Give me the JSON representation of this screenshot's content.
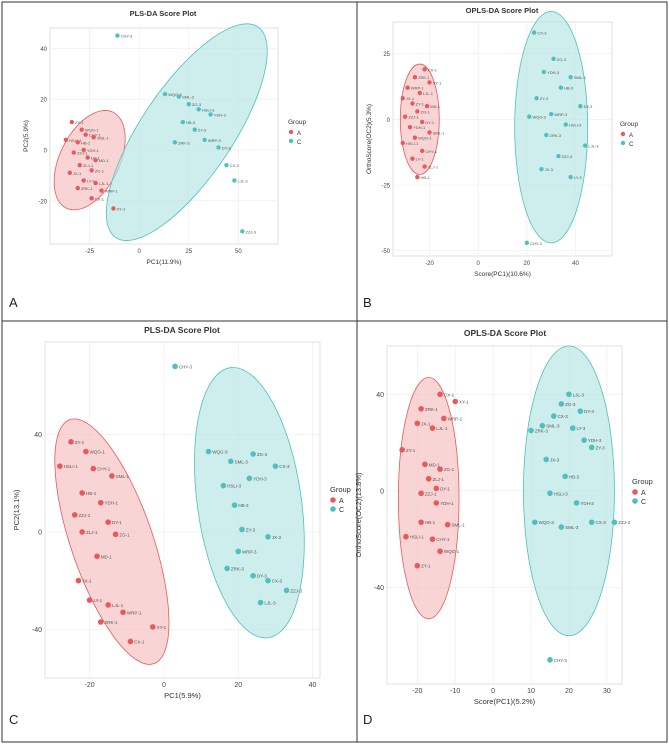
{
  "figure": {
    "panel_letters": [
      "A",
      "B",
      "C",
      "D"
    ],
    "colors": {
      "group_a": "#e8595c",
      "group_c": "#4fbfbf",
      "ellipse_a_fill": "#f7c2c2",
      "ellipse_c_fill": "#b9e6e6",
      "border": "#333333"
    }
  },
  "chart_data": [
    {
      "type": "scatter",
      "title": "PLS-DA Score Plot",
      "xlabel": "PC1(11.9%)",
      "ylabel": "PC2(5.9%)",
      "xlim": [
        -45,
        70
      ],
      "ylim": [
        -37,
        48
      ],
      "xticks": [
        -25,
        0,
        25,
        50
      ],
      "yticks": [
        -20,
        0,
        20,
        40
      ],
      "legend_title": "Group",
      "legend": [
        "A",
        "C"
      ],
      "ellipses": [
        {
          "group": "A",
          "cx": -25,
          "cy": -4,
          "rx": 15,
          "ry": 21,
          "angle": 26
        },
        {
          "group": "C",
          "cx": 24,
          "cy": 7,
          "rx": 23,
          "ry": 50,
          "angle": 34
        }
      ],
      "series": [
        {
          "name": "A",
          "points": [
            {
              "x": -34,
              "y": 11,
              "label": "ZY-1"
            },
            {
              "x": -29,
              "y": 8,
              "label": "WQG-1"
            },
            {
              "x": -27,
              "y": 6,
              "label": "CHY-1"
            },
            {
              "x": -37,
              "y": 4,
              "label": "HSLI-1"
            },
            {
              "x": -31,
              "y": 3,
              "label": "HB-1"
            },
            {
              "x": -23,
              "y": 5,
              "label": "SML-1"
            },
            {
              "x": -28,
              "y": 0,
              "label": "YDH-1"
            },
            {
              "x": -33,
              "y": -1,
              "label": "ZZJ-1"
            },
            {
              "x": -26,
              "y": -3,
              "label": "DY-1"
            },
            {
              "x": -22,
              "y": -4,
              "label": "MD-1"
            },
            {
              "x": -30,
              "y": -6,
              "label": "ZLJ-1"
            },
            {
              "x": -24,
              "y": -8,
              "label": "ZG-1"
            },
            {
              "x": -35,
              "y": -9,
              "label": "JX-1"
            },
            {
              "x": -28,
              "y": -12,
              "label": "LY-1"
            },
            {
              "x": -22,
              "y": -13,
              "label": "LJL-1"
            },
            {
              "x": -31,
              "y": -15,
              "label": "ZRK-1"
            },
            {
              "x": -19,
              "y": -16,
              "label": "WRP-1"
            },
            {
              "x": -24,
              "y": -19,
              "label": "CX-1"
            },
            {
              "x": -13,
              "y": -23,
              "label": "XY-1"
            }
          ]
        },
        {
          "name": "C",
          "points": [
            {
              "x": -11,
              "y": 45,
              "label": "CHY-3"
            },
            {
              "x": 13,
              "y": 22,
              "label": "WQG-3"
            },
            {
              "x": 20,
              "y": 21,
              "label": "SML-3"
            },
            {
              "x": 25,
              "y": 18,
              "label": "ZG-3"
            },
            {
              "x": 30,
              "y": 16,
              "label": "HSLI-3"
            },
            {
              "x": 36,
              "y": 14,
              "label": "YDH-3"
            },
            {
              "x": 22,
              "y": 11,
              "label": "HB-3"
            },
            {
              "x": 28,
              "y": 8,
              "label": "ZY-3"
            },
            {
              "x": 33,
              "y": 4,
              "label": "WRP-3"
            },
            {
              "x": 18,
              "y": 3,
              "label": "ZRK-3"
            },
            {
              "x": 40,
              "y": 1,
              "label": "DY-3"
            },
            {
              "x": 44,
              "y": -6,
              "label": "CX-3"
            },
            {
              "x": 48,
              "y": -12,
              "label": "LJL-3"
            },
            {
              "x": 52,
              "y": -32,
              "label": "ZZJ-3"
            }
          ]
        }
      ]
    },
    {
      "type": "scatter",
      "title": "OPLS-DA Score Plot",
      "xlabel": "Score(PC1)(10.6%)",
      "ylabel": "OrthoScore(OC2)(5.3%)",
      "xlim": [
        -35,
        55
      ],
      "ylim": [
        -52,
        37
      ],
      "xticks": [
        -20,
        0,
        20,
        40
      ],
      "yticks": [
        -50,
        -25,
        0,
        25
      ],
      "legend_title": "Group",
      "legend": [
        "A",
        "C"
      ],
      "ellipses": [
        {
          "group": "A",
          "cx": -24,
          "cy": 0,
          "rx": 8,
          "ry": 21,
          "angle": 0
        },
        {
          "group": "C",
          "cx": 30,
          "cy": -3,
          "rx": 15,
          "ry": 44,
          "angle": 0
        }
      ],
      "series": [
        {
          "name": "A",
          "points": [
            {
              "x": -22,
              "y": 19,
              "label": "CX-1"
            },
            {
              "x": -26,
              "y": 16,
              "label": "ZRK-1"
            },
            {
              "x": -20,
              "y": 14,
              "label": "XY-1"
            },
            {
              "x": -29,
              "y": 12,
              "label": "WRP-1"
            },
            {
              "x": -24,
              "y": 10,
              "label": "LJL-1"
            },
            {
              "x": -31,
              "y": 8,
              "label": "JX-1"
            },
            {
              "x": -27,
              "y": 6,
              "label": "ZY-1"
            },
            {
              "x": -21,
              "y": 5,
              "label": "MD-1"
            },
            {
              "x": -25,
              "y": 3,
              "label": "ZG-1"
            },
            {
              "x": -30,
              "y": 1,
              "label": "ZZJ-1"
            },
            {
              "x": -23,
              "y": -1,
              "label": "DY-1"
            },
            {
              "x": -28,
              "y": -3,
              "label": "YDH-1"
            },
            {
              "x": -20,
              "y": -5,
              "label": "SML-1"
            },
            {
              "x": -26,
              "y": -7,
              "label": "WQG-1"
            },
            {
              "x": -31,
              "y": -9,
              "label": "HSLI-1"
            },
            {
              "x": -23,
              "y": -12,
              "label": "CHY-1"
            },
            {
              "x": -27,
              "y": -15,
              "label": "LY-1"
            },
            {
              "x": -22,
              "y": -18,
              "label": "ZLJ-1"
            },
            {
              "x": -25,
              "y": -22,
              "label": "HB-1"
            }
          ]
        },
        {
          "name": "C",
          "points": [
            {
              "x": 23,
              "y": 33,
              "label": "CX-3"
            },
            {
              "x": 31,
              "y": 23,
              "label": "ZG-3"
            },
            {
              "x": 27,
              "y": 18,
              "label": "YDH-3"
            },
            {
              "x": 38,
              "y": 16,
              "label": "SML-3"
            },
            {
              "x": 34,
              "y": 12,
              "label": "HB-3"
            },
            {
              "x": 24,
              "y": 8,
              "label": "ZY-3"
            },
            {
              "x": 42,
              "y": 5,
              "label": "DY-3"
            },
            {
              "x": 30,
              "y": 2,
              "label": "WRP-3"
            },
            {
              "x": 21,
              "y": 1,
              "label": "WQG-3"
            },
            {
              "x": 36,
              "y": -2,
              "label": "HSLI-3"
            },
            {
              "x": 28,
              "y": -6,
              "label": "ZRK-3"
            },
            {
              "x": 44,
              "y": -10,
              "label": "LJL-3"
            },
            {
              "x": 33,
              "y": -14,
              "label": "ZZJ-3"
            },
            {
              "x": 26,
              "y": -19,
              "label": "JX-3"
            },
            {
              "x": 38,
              "y": -22,
              "label": "LY-3"
            },
            {
              "x": 20,
              "y": -47,
              "label": "CHY-3"
            }
          ]
        }
      ]
    },
    {
      "type": "scatter",
      "title": "PLS-DA Score Plot",
      "xlabel": "PC1(5.9%)",
      "ylabel": "PC2(13.1%)",
      "xlim": [
        -32,
        42
      ],
      "ylim": [
        -60,
        78
      ],
      "xticks": [
        -20,
        0,
        20,
        40
      ],
      "yticks": [
        -40,
        0,
        40
      ],
      "legend_title": "Group",
      "legend": [
        "A",
        "C"
      ],
      "ellipses": [
        {
          "group": "A",
          "cx": -14,
          "cy": -4,
          "rx": 11,
          "ry": 53,
          "angle": -19
        },
        {
          "group": "C",
          "cx": 23,
          "cy": 12,
          "rx": 14,
          "ry": 56,
          "angle": -8
        }
      ],
      "series": [
        {
          "name": "A",
          "points": [
            {
              "x": -25,
              "y": 37,
              "label": "ZY-1"
            },
            {
              "x": -21,
              "y": 33,
              "label": "WQG-1"
            },
            {
              "x": -28,
              "y": 27,
              "label": "HSLI-1"
            },
            {
              "x": -19,
              "y": 26,
              "label": "CHY-1"
            },
            {
              "x": -14,
              "y": 23,
              "label": "SML-1"
            },
            {
              "x": -22,
              "y": 16,
              "label": "HB-1"
            },
            {
              "x": -17,
              "y": 12,
              "label": "YDH-1"
            },
            {
              "x": -24,
              "y": 7,
              "label": "ZZJ-1"
            },
            {
              "x": -15,
              "y": 4,
              "label": "DY-1"
            },
            {
              "x": -22,
              "y": 0,
              "label": "ZLJ-1"
            },
            {
              "x": -13,
              "y": -1,
              "label": "ZG-1"
            },
            {
              "x": -18,
              "y": -10,
              "label": "MD-1"
            },
            {
              "x": -23,
              "y": -20,
              "label": "JX-1"
            },
            {
              "x": -20,
              "y": -28,
              "label": "LY-1"
            },
            {
              "x": -15,
              "y": -30,
              "label": "LJL-1"
            },
            {
              "x": -11,
              "y": -33,
              "label": "WRP-1"
            },
            {
              "x": -17,
              "y": -37,
              "label": "ZRK-1"
            },
            {
              "x": -3,
              "y": -39,
              "label": "XY-1"
            },
            {
              "x": -9,
              "y": -45,
              "label": "CX-1"
            }
          ]
        },
        {
          "name": "C",
          "points": [
            {
              "x": 3,
              "y": 68,
              "label": "CHY-3"
            },
            {
              "x": 12,
              "y": 33,
              "label": "WQG-3"
            },
            {
              "x": 24,
              "y": 32,
              "label": "ZG-3"
            },
            {
              "x": 18,
              "y": 29,
              "label": "SML-3"
            },
            {
              "x": 30,
              "y": 27,
              "label": "CX-3"
            },
            {
              "x": 23,
              "y": 22,
              "label": "YDH-3"
            },
            {
              "x": 16,
              "y": 19,
              "label": "HSLI-3"
            },
            {
              "x": 19,
              "y": 11,
              "label": "HB-3"
            },
            {
              "x": 21,
              "y": 1,
              "label": "ZY-3"
            },
            {
              "x": 28,
              "y": -2,
              "label": "JX-3"
            },
            {
              "x": 20,
              "y": -8,
              "label": "WRP-3"
            },
            {
              "x": 17,
              "y": -15,
              "label": "ZRK-3"
            },
            {
              "x": 24,
              "y": -18,
              "label": "DY-3"
            },
            {
              "x": 28,
              "y": -20,
              "label": "CX-3"
            },
            {
              "x": 33,
              "y": -24,
              "label": "ZZJ-3"
            },
            {
              "x": 26,
              "y": -29,
              "label": "LJL-3"
            }
          ]
        }
      ]
    },
    {
      "type": "scatter",
      "title": "OPLS-DA Score Plot",
      "xlabel": "Score(PC1)(5.2%)",
      "ylabel": "OrthoScore(OC2)(13.8%)",
      "xlim": [
        -28,
        34
      ],
      "ylim": [
        -80,
        60
      ],
      "xticks": [
        -20,
        -10,
        0,
        10,
        20,
        30
      ],
      "yticks": [
        -40,
        0,
        40
      ],
      "legend_title": "Group",
      "legend": [
        "A",
        "C"
      ],
      "ellipses": [
        {
          "group": "A",
          "cx": -17,
          "cy": -3,
          "rx": 8,
          "ry": 50,
          "angle": 0
        },
        {
          "group": "C",
          "cx": 20,
          "cy": 0,
          "rx": 12,
          "ry": 60,
          "angle": 0
        }
      ],
      "series": [
        {
          "name": "A",
          "points": [
            {
              "x": -14,
              "y": 40,
              "label": "CX-1"
            },
            {
              "x": -10,
              "y": 37,
              "label": "XY-1"
            },
            {
              "x": -19,
              "y": 34,
              "label": "ZRK-1"
            },
            {
              "x": -13,
              "y": 30,
              "label": "WRP-1"
            },
            {
              "x": -20,
              "y": 28,
              "label": "JX-1"
            },
            {
              "x": -16,
              "y": 26,
              "label": "LJL-1"
            },
            {
              "x": -24,
              "y": 17,
              "label": "ZY-1"
            },
            {
              "x": -18,
              "y": 11,
              "label": "MD-1"
            },
            {
              "x": -14,
              "y": 9,
              "label": "ZG-1"
            },
            {
              "x": -17,
              "y": 5,
              "label": "ZLJ-1"
            },
            {
              "x": -15,
              "y": 1,
              "label": "DY-1"
            },
            {
              "x": -19,
              "y": -1,
              "label": "ZZJ-1"
            },
            {
              "x": -15,
              "y": -5,
              "label": "YDH-1"
            },
            {
              "x": -19,
              "y": -13,
              "label": "HB-1"
            },
            {
              "x": -12,
              "y": -14,
              "label": "SML-1"
            },
            {
              "x": -23,
              "y": -19,
              "label": "HSLI-1"
            },
            {
              "x": -16,
              "y": -20,
              "label": "CHY-1"
            },
            {
              "x": -14,
              "y": -25,
              "label": "WQG-1"
            },
            {
              "x": -20,
              "y": -31,
              "label": "ZY-1"
            }
          ]
        },
        {
          "name": "C",
          "points": [
            {
              "x": 20,
              "y": 40,
              "label": "LJL-3"
            },
            {
              "x": 18,
              "y": 36,
              "label": "ZG-3"
            },
            {
              "x": 23,
              "y": 33,
              "label": "DY-3"
            },
            {
              "x": 16,
              "y": 31,
              "label": "CX-3"
            },
            {
              "x": 13,
              "y": 27,
              "label": "SML-3"
            },
            {
              "x": 21,
              "y": 26,
              "label": "LY-3"
            },
            {
              "x": 10,
              "y": 25,
              "label": "ZRK-3"
            },
            {
              "x": 24,
              "y": 21,
              "label": "YDH-3"
            },
            {
              "x": 26,
              "y": 18,
              "label": "ZY-3"
            },
            {
              "x": 14,
              "y": 13,
              "label": "JX-3"
            },
            {
              "x": 19,
              "y": 6,
              "label": "HB-3"
            },
            {
              "x": 15,
              "y": -1,
              "label": "HSLI-3"
            },
            {
              "x": 22,
              "y": -5,
              "label": "YDH-3"
            },
            {
              "x": 11,
              "y": -13,
              "label": "WQG-3"
            },
            {
              "x": 18,
              "y": -15,
              "label": "SML-3"
            },
            {
              "x": 32,
              "y": -13,
              "label": "ZZJ-3"
            },
            {
              "x": 26,
              "y": -13,
              "label": "CX-3"
            },
            {
              "x": 15,
              "y": -70,
              "label": "CHY-3"
            }
          ]
        }
      ]
    }
  ]
}
